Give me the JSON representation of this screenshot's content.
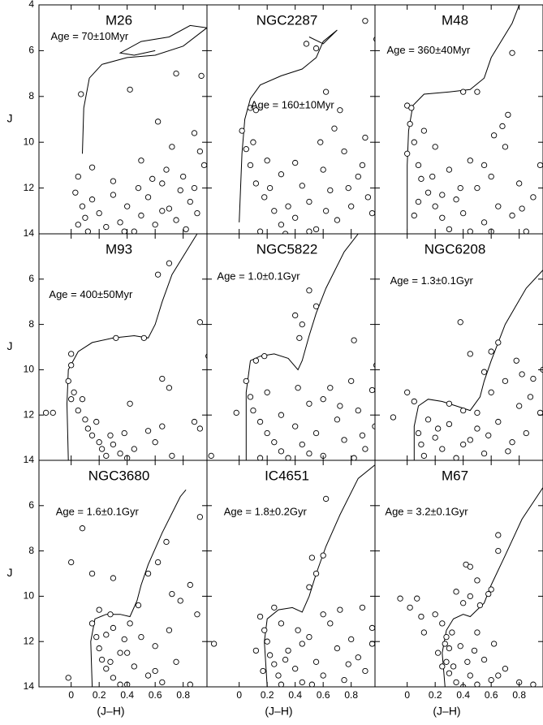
{
  "chart_data": [
    {
      "type": "scatter",
      "title": "M26",
      "annotation": "Age = 70±10Myr",
      "ylabel": "J",
      "xlim": [
        -0.23,
        0.97
      ],
      "ylim": [
        14,
        4
      ],
      "xticks": [
        0,
        0.2,
        0.4,
        0.6,
        0.8
      ],
      "yticks": [
        4,
        6,
        8,
        10,
        12,
        14
      ],
      "stars": {
        "x": [
          0.05,
          0.03,
          0.08,
          0.1,
          0.05,
          0.12,
          0.15,
          0.2,
          0.25,
          0.3,
          0.35,
          0.4,
          0.45,
          0.5,
          0.55,
          0.6,
          0.65,
          0.7,
          0.75,
          0.8,
          0.85,
          0.9,
          0.95,
          0.72,
          0.62,
          0.88,
          0.42,
          0.93,
          0.75,
          0.07,
          0.5,
          0.68,
          0.78,
          0.92,
          0.3,
          0.15,
          0.58,
          0.82,
          0.38,
          0.65,
          0.88,
          0.48
        ],
        "y": [
          11.5,
          12.2,
          12.8,
          13.3,
          13.6,
          13.9,
          12.5,
          13.1,
          13.7,
          12.3,
          13.5,
          12.8,
          13.9,
          13.2,
          12.4,
          13.6,
          11.8,
          12.9,
          13.4,
          11.5,
          12.6,
          13.1,
          11.0,
          10.2,
          9.1,
          9.6,
          7.7,
          7.1,
          7.0,
          7.9,
          10.8,
          11.2,
          12.1,
          10.4,
          11.7,
          11.1,
          11.6,
          13.8,
          13.9,
          13.0,
          12.0,
          12.0
        ]
      },
      "isochrone": {
        "x": [
          0.08,
          0.09,
          0.13,
          0.22,
          0.4,
          0.6,
          0.8,
          0.97,
          0.85,
          0.7,
          0.5,
          0.35,
          0.45,
          0.6
        ],
        "y": [
          10.5,
          8.5,
          7.2,
          6.6,
          6.3,
          6.2,
          5.8,
          5.0,
          4.9,
          5.4,
          5.6,
          6.1,
          6.2,
          6.0
        ]
      }
    },
    {
      "type": "scatter",
      "title": "NGC2287",
      "annotation": "Age = 160±10Myr",
      "xlim": [
        -0.23,
        0.97
      ],
      "ylim": [
        14,
        4
      ],
      "xticks": [
        0,
        0.2,
        0.4,
        0.6,
        0.8
      ],
      "yticks": [
        4,
        6,
        8,
        10,
        12,
        14
      ],
      "stars": {
        "x": [
          0.48,
          0.55,
          0.9,
          0.98,
          0.62,
          0.72,
          0.08,
          0.12,
          0.02,
          0.05,
          0.08,
          0.12,
          0.18,
          0.25,
          0.3,
          0.35,
          0.4,
          0.45,
          0.5,
          0.55,
          0.6,
          0.65,
          0.7,
          0.75,
          0.8,
          0.85,
          0.9,
          0.95,
          0.2,
          0.3,
          0.4,
          0.58,
          0.68,
          0.88,
          0.15,
          0.5,
          0.1,
          0.22,
          0.62,
          0.78,
          0.33,
          0.92
        ],
        "y": [
          5.7,
          5.9,
          4.7,
          5.5,
          7.8,
          8.6,
          8.5,
          8.6,
          9.5,
          10.3,
          11.0,
          11.8,
          12.4,
          13.0,
          13.6,
          12.8,
          13.3,
          11.9,
          12.6,
          13.8,
          11.2,
          12.1,
          13.4,
          10.4,
          12.8,
          11.5,
          9.8,
          13.1,
          10.8,
          11.4,
          10.9,
          10.0,
          9.4,
          11.0,
          13.9,
          13.9,
          10.0,
          12.0,
          13.0,
          12.0,
          14.0,
          12.4
        ]
      },
      "isochrone": {
        "x": [
          0.0,
          0.02,
          0.04,
          0.08,
          0.15,
          0.3,
          0.45,
          0.55,
          0.6,
          0.7,
          0.6,
          0.5
        ],
        "y": [
          13.5,
          10.5,
          9.0,
          8.1,
          7.5,
          7.1,
          6.8,
          6.3,
          5.6,
          5.1,
          5.7,
          5.4
        ]
      }
    },
    {
      "type": "scatter",
      "title": "M48",
      "annotation": "Age = 360±40Myr",
      "xlim": [
        -0.23,
        0.97
      ],
      "ylim": [
        14,
        4
      ],
      "xticks": [
        0,
        0.2,
        0.4,
        0.6,
        0.8
      ],
      "yticks": [
        4,
        6,
        8,
        10,
        12,
        14
      ],
      "stars": {
        "x": [
          0.0,
          0.03,
          0.02,
          0.05,
          0.0,
          0.08,
          0.1,
          0.15,
          0.2,
          0.25,
          0.3,
          0.35,
          0.4,
          0.45,
          0.5,
          0.55,
          0.6,
          0.65,
          0.7,
          0.75,
          0.8,
          0.85,
          0.9,
          0.95,
          0.12,
          0.2,
          0.3,
          0.45,
          0.62,
          0.72,
          0.4,
          0.5,
          0.75,
          0.68,
          0.25,
          0.38,
          0.55,
          0.18,
          0.82,
          0.6,
          0.08,
          0.05
        ],
        "y": [
          8.4,
          8.5,
          9.2,
          10.0,
          10.5,
          11.0,
          11.6,
          12.2,
          12.8,
          13.3,
          13.8,
          12.5,
          13.1,
          13.9,
          12.0,
          13.5,
          11.5,
          12.8,
          10.2,
          13.2,
          11.8,
          13.9,
          12.4,
          11.0,
          9.5,
          10.2,
          11.2,
          10.8,
          9.7,
          8.8,
          7.8,
          7.8,
          6.1,
          9.3,
          12.3,
          12.0,
          11.0,
          11.5,
          12.9,
          13.9,
          12.6,
          13.2
        ]
      },
      "isochrone": {
        "x": [
          0.0,
          0.0,
          0.01,
          0.04,
          0.12,
          0.3,
          0.45,
          0.55,
          0.6,
          0.75,
          0.8
        ],
        "y": [
          13.8,
          11.0,
          9.5,
          8.4,
          7.9,
          7.8,
          7.7,
          7.2,
          6.3,
          4.8,
          4.0
        ]
      }
    },
    {
      "type": "scatter",
      "title": "M93",
      "annotation": "Age = 400±50Myr",
      "ylabel": "J",
      "xlim": [
        -0.23,
        0.97
      ],
      "ylim": [
        14,
        4
      ],
      "xticks": [
        0,
        0.2,
        0.4,
        0.6,
        0.8
      ],
      "yticks": [
        6,
        8,
        10,
        12,
        14
      ],
      "stars": {
        "x": [
          -0.18,
          -0.13,
          0.0,
          -0.02,
          0.02,
          0.0,
          0.05,
          0.1,
          0.12,
          0.15,
          0.2,
          0.22,
          0.25,
          0.3,
          0.35,
          0.4,
          0.18,
          0.08,
          0.28,
          0.32,
          0.52,
          0.62,
          0.7,
          0.92,
          0.98,
          0.65,
          0.7,
          0.88,
          0.92,
          0.72,
          0.55,
          0.65,
          0.45,
          0.42,
          0.0,
          0.6,
          0.38
        ],
        "y": [
          11.9,
          11.9,
          9.8,
          10.5,
          11.0,
          11.3,
          11.8,
          12.2,
          12.6,
          12.9,
          13.2,
          13.5,
          13.8,
          13.3,
          13.7,
          13.9,
          12.3,
          11.3,
          12.9,
          8.6,
          8.6,
          5.8,
          5.3,
          7.9,
          9.4,
          10.4,
          10.8,
          12.3,
          12.6,
          13.8,
          12.7,
          12.5,
          13.5,
          11.5,
          9.3,
          13.2,
          12.8
        ]
      },
      "isochrone": {
        "x": [
          -0.02,
          -0.03,
          -0.02,
          0.05,
          0.15,
          0.3,
          0.45,
          0.55,
          0.6,
          0.65,
          0.72,
          0.85,
          0.9
        ],
        "y": [
          14,
          11.5,
          10.0,
          9.2,
          8.8,
          8.6,
          8.5,
          8.6,
          8.0,
          7.0,
          5.8,
          4.5,
          4.0
        ]
      }
    },
    {
      "type": "scatter",
      "title": "NGC5822",
      "annotation": "Age = 1.0±0.1Gyr",
      "xlim": [
        -0.23,
        0.97
      ],
      "ylim": [
        14,
        4
      ],
      "xticks": [
        0,
        0.2,
        0.4,
        0.6,
        0.8
      ],
      "yticks": [
        6,
        8,
        10,
        12,
        14
      ],
      "stars": {
        "x": [
          0.12,
          0.18,
          0.4,
          0.45,
          0.5,
          0.55,
          0.43,
          0.82,
          0.98,
          0.05,
          0.08,
          0.1,
          0.15,
          0.2,
          0.25,
          0.3,
          0.35,
          0.4,
          0.45,
          0.5,
          0.55,
          0.6,
          0.65,
          0.7,
          0.75,
          0.8,
          0.85,
          0.9,
          0.95,
          0.97,
          0.2,
          0.3,
          0.6,
          0.72,
          0.88,
          0.5,
          0.15,
          -0.02,
          -0.2,
          0.82,
          0.42
        ],
        "y": [
          9.6,
          9.4,
          7.6,
          8.0,
          6.5,
          7.2,
          8.6,
          8.7,
          9.8,
          10.5,
          11.2,
          11.8,
          12.3,
          12.8,
          13.2,
          13.6,
          13.9,
          12.5,
          13.3,
          11.5,
          12.8,
          13.8,
          10.8,
          12.2,
          13.1,
          10.5,
          11.8,
          13.5,
          10.9,
          12.5,
          11.0,
          12.0,
          11.3,
          11.6,
          12.9,
          13.7,
          13.9,
          11.9,
          13.8,
          13.9,
          10.8
        ]
      },
      "isochrone": {
        "x": [
          0.05,
          0.05,
          0.08,
          0.15,
          0.25,
          0.35,
          0.42,
          0.45,
          0.5,
          0.55,
          0.62,
          0.75,
          0.85
        ],
        "y": [
          14,
          11.0,
          9.6,
          9.4,
          9.3,
          9.5,
          10.0,
          9.6,
          8.5,
          7.5,
          6.4,
          4.8,
          4.0
        ]
      }
    },
    {
      "type": "scatter",
      "title": "NGC6208",
      "annotation": "Age = 1.3±0.1Gyr",
      "xlim": [
        -0.23,
        0.97
      ],
      "ylim": [
        14,
        4
      ],
      "xticks": [
        0,
        0.2,
        0.4,
        0.6,
        0.8
      ],
      "yticks": [
        6,
        8,
        10,
        12,
        14
      ],
      "stars": {
        "x": [
          0.0,
          0.05,
          -0.1,
          0.08,
          0.1,
          0.12,
          0.15,
          0.2,
          0.25,
          0.3,
          0.35,
          0.4,
          0.45,
          0.5,
          0.55,
          0.6,
          0.65,
          0.7,
          0.75,
          0.8,
          0.85,
          0.9,
          0.95,
          0.97,
          0.38,
          0.6,
          0.65,
          0.55,
          0.45,
          0.78,
          0.22,
          0.3,
          0.5,
          0.72,
          0.58,
          0.88,
          0.82,
          0.4
        ],
        "y": [
          11.0,
          11.4,
          12.1,
          12.8,
          13.3,
          13.8,
          12.2,
          13.0,
          13.5,
          12.4,
          13.9,
          11.8,
          13.1,
          12.6,
          13.7,
          11.0,
          12.3,
          10.5,
          13.2,
          11.6,
          12.8,
          10.4,
          11.9,
          10.0,
          7.9,
          9.2,
          8.8,
          10.1,
          9.3,
          9.6,
          12.6,
          11.5,
          11.9,
          13.6,
          12.9,
          11.2,
          10.2,
          13.3
        ]
      },
      "isochrone": {
        "x": [
          0.05,
          0.05,
          0.08,
          0.15,
          0.25,
          0.35,
          0.45,
          0.52,
          0.55,
          0.6,
          0.7,
          0.85,
          0.97
        ],
        "y": [
          14,
          12.5,
          11.6,
          11.3,
          11.4,
          11.6,
          11.8,
          11.2,
          10.5,
          9.6,
          8.0,
          6.4,
          5.6
        ]
      }
    },
    {
      "type": "scatter",
      "title": "NGC3680",
      "annotation": "Age = 1.6±0.1Gyr",
      "ylabel": "J",
      "xlabel": "(J–H)",
      "xlim": [
        -0.23,
        0.97
      ],
      "ylim": [
        14,
        4
      ],
      "xticks": [
        0,
        0.2,
        0.4,
        0.6,
        0.8
      ],
      "yticks": [
        6,
        8,
        10,
        12,
        14
      ],
      "stars": {
        "x": [
          -0.02,
          0.0,
          0.08,
          0.15,
          0.3,
          0.2,
          0.28,
          0.3,
          0.18,
          0.2,
          0.22,
          0.25,
          0.3,
          0.35,
          0.4,
          0.45,
          0.5,
          0.55,
          0.6,
          0.65,
          0.7,
          0.75,
          0.78,
          0.85,
          0.9,
          0.92,
          0.62,
          0.55,
          0.48,
          0.68,
          0.72,
          0.38,
          0.42,
          0.28,
          0.35,
          0.25,
          0.6,
          0.15,
          0.4,
          0.85
        ],
        "y": [
          13.6,
          8.5,
          7.0,
          9.0,
          9.2,
          10.6,
          10.8,
          11.4,
          11.8,
          12.3,
          12.8,
          13.2,
          13.6,
          13.9,
          12.5,
          13.1,
          11.8,
          13.5,
          12.2,
          13.8,
          11.5,
          12.9,
          10.2,
          9.5,
          10.8,
          6.5,
          8.5,
          9.0,
          10.4,
          7.6,
          9.9,
          11.9,
          11.2,
          12.9,
          12.5,
          11.7,
          13.3,
          11.2,
          13.9,
          13.9
        ]
      },
      "isochrone": {
        "x": [
          0.15,
          0.14,
          0.17,
          0.25,
          0.35,
          0.42,
          0.47,
          0.5,
          0.55,
          0.65,
          0.78,
          0.82
        ],
        "y": [
          14,
          12.0,
          11.0,
          10.8,
          10.8,
          10.9,
          10.2,
          9.5,
          8.6,
          7.2,
          5.6,
          5.3
        ]
      }
    },
    {
      "type": "scatter",
      "title": "IC4651",
      "annotation": "Age = 1.8±0.2Gyr",
      "xlabel": "(J–H)",
      "xlim": [
        -0.23,
        0.97
      ],
      "ylim": [
        14,
        4
      ],
      "xticks": [
        0,
        0.2,
        0.4,
        0.6,
        0.8
      ],
      "yticks": [
        6,
        8,
        10,
        12,
        14
      ],
      "stars": {
        "x": [
          0.62,
          0.52,
          0.6,
          0.55,
          0.5,
          0.88,
          0.95,
          0.15,
          0.18,
          0.2,
          0.22,
          0.25,
          0.28,
          0.3,
          0.35,
          0.4,
          0.45,
          0.5,
          0.55,
          0.6,
          0.65,
          0.7,
          0.75,
          0.8,
          0.85,
          0.9,
          0.95,
          -0.18,
          0.25,
          0.3,
          0.6,
          0.42,
          0.72,
          0.17,
          0.33,
          0.52,
          0.78,
          0.12,
          0.45
        ],
        "y": [
          5.7,
          8.3,
          8.2,
          9.0,
          9.6,
          10.5,
          11.4,
          10.9,
          11.5,
          12.0,
          12.6,
          13.0,
          13.5,
          13.9,
          12.4,
          13.2,
          13.8,
          11.8,
          12.9,
          13.5,
          11.2,
          12.3,
          13.7,
          11.9,
          12.7,
          13.3,
          12.1,
          12.1,
          10.5,
          11.2,
          10.8,
          11.5,
          10.6,
          13.3,
          12.8,
          13.9,
          13.0,
          12.4,
          12.1
        ]
      },
      "isochrone": {
        "x": [
          0.2,
          0.18,
          0.2,
          0.28,
          0.38,
          0.45,
          0.5,
          0.55,
          0.62,
          0.72,
          0.85,
          0.97
        ],
        "y": [
          14,
          12.0,
          11.0,
          10.6,
          10.5,
          10.7,
          10.0,
          9.0,
          7.8,
          6.4,
          4.8,
          4.2
        ]
      }
    },
    {
      "type": "scatter",
      "title": "M67",
      "annotation": "Age = 3.2±0.1Gyr",
      "xlabel": "(J–H)",
      "xlim": [
        -0.23,
        0.97
      ],
      "ylim": [
        14,
        4
      ],
      "xticks": [
        0,
        0.2,
        0.4,
        0.6,
        0.8
      ],
      "yticks": [
        6,
        8,
        10,
        12,
        14
      ],
      "stars": {
        "x": [
          -0.05,
          0.07,
          0.02,
          0.1,
          0.12,
          0.2,
          0.25,
          0.28,
          0.3,
          0.28,
          0.3,
          0.35,
          0.4,
          0.22,
          0.25,
          0.45,
          0.5,
          0.55,
          0.6,
          0.7,
          0.35,
          0.4,
          0.45,
          0.42,
          0.45,
          0.5,
          0.52,
          0.58,
          0.6,
          0.65,
          0.65,
          0.62,
          0.8,
          0.9,
          0.38,
          0.32,
          0.43,
          0.27,
          0.5,
          0.33,
          0.48,
          0.65
        ],
        "y": [
          10.1,
          10.1,
          10.5,
          10.9,
          11.6,
          10.8,
          11.2,
          11.8,
          12.3,
          12.9,
          13.4,
          13.8,
          14.0,
          12.5,
          13.1,
          13.5,
          13.9,
          12.8,
          13.7,
          13.2,
          9.8,
          10.3,
          10.0,
          8.6,
          8.7,
          9.3,
          10.4,
          9.9,
          9.7,
          7.3,
          8.0,
          12.1,
          13.8,
          13.9,
          12.2,
          11.6,
          12.9,
          12.1,
          11.6,
          13.1,
          12.4,
          13.5
        ]
      },
      "isochrone": {
        "x": [
          0.27,
          0.25,
          0.28,
          0.33,
          0.4,
          0.45,
          0.5,
          0.55,
          0.6,
          0.7,
          0.82,
          0.97
        ],
        "y": [
          14,
          12.5,
          11.5,
          11.0,
          10.8,
          10.9,
          10.6,
          10.3,
          9.5,
          8.2,
          6.6,
          5.2
        ]
      }
    }
  ]
}
